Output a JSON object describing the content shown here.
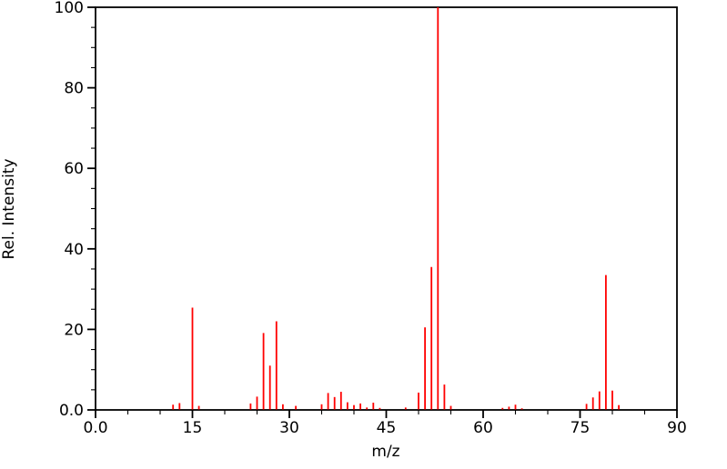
{
  "chart_data": {
    "type": "bar",
    "subtype": "mass-spectrum",
    "title": "",
    "xlabel": "m/z",
    "ylabel": "Rel. Intensity",
    "xlim": [
      0,
      90
    ],
    "ylim": [
      0,
      100
    ],
    "grid": false,
    "legend": null,
    "peak_color": "#ff0000",
    "axis_color": "#000000",
    "x_major_ticks": [
      0,
      15,
      30,
      45,
      60,
      75,
      90
    ],
    "x_major_tick_labels": [
      "0.0",
      "15",
      "30",
      "45",
      "60",
      "75",
      "90"
    ],
    "x_minor_tick_step": 5,
    "y_major_ticks": [
      0,
      20,
      40,
      60,
      80,
      100
    ],
    "y_major_tick_labels": [
      "0.0",
      "20",
      "40",
      "60",
      "80",
      "100"
    ],
    "y_minor_tick_step": 5,
    "series": [
      {
        "name": "relative-intensity",
        "peaks": [
          [
            12,
            1.3
          ],
          [
            13,
            1.7
          ],
          [
            15,
            25.4
          ],
          [
            16,
            1.0
          ],
          [
            24,
            1.6
          ],
          [
            25,
            3.3
          ],
          [
            26,
            19.1
          ],
          [
            27,
            11.0
          ],
          [
            28,
            22.0
          ],
          [
            29,
            1.4
          ],
          [
            31,
            1.0
          ],
          [
            35,
            1.4
          ],
          [
            36,
            4.2
          ],
          [
            37,
            3.2
          ],
          [
            38,
            4.5
          ],
          [
            39,
            1.9
          ],
          [
            40,
            1.2
          ],
          [
            41,
            1.6
          ],
          [
            42,
            0.6
          ],
          [
            43,
            1.8
          ],
          [
            44,
            0.5
          ],
          [
            48,
            0.6
          ],
          [
            50,
            4.3
          ],
          [
            51,
            20.5
          ],
          [
            52,
            35.5
          ],
          [
            53,
            100.0
          ],
          [
            54,
            6.3
          ],
          [
            55,
            1.0
          ],
          [
            63,
            0.5
          ],
          [
            64,
            0.8
          ],
          [
            65,
            1.3
          ],
          [
            66,
            0.4
          ],
          [
            76,
            1.5
          ],
          [
            77,
            3.1
          ],
          [
            78,
            4.6
          ],
          [
            79,
            33.5
          ],
          [
            80,
            4.8
          ],
          [
            81,
            1.2
          ]
        ]
      }
    ]
  }
}
